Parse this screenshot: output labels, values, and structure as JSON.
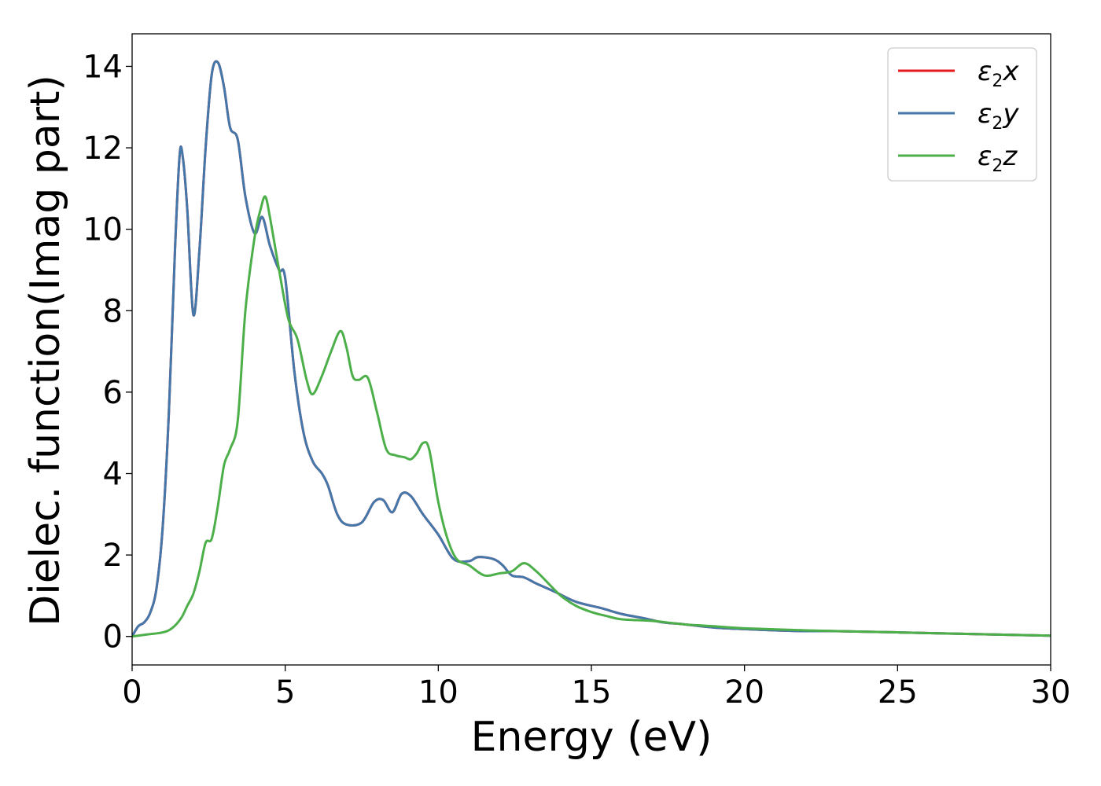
{
  "chart_data": {
    "type": "line",
    "xlabel": "Energy (eV)",
    "ylabel": "Dielec. function(Imag part)",
    "xlim": [
      0,
      30
    ],
    "ylim": [
      -0.7,
      14.8
    ],
    "xticks": [
      0,
      5,
      10,
      15,
      20,
      25,
      30
    ],
    "yticks": [
      0,
      2,
      4,
      6,
      8,
      10,
      12,
      14
    ],
    "grid": false,
    "legend_position": "top-right",
    "series": [
      {
        "name": "ε₂x",
        "legend": {
          "base": "ε",
          "sub": "2",
          "suffix": "x"
        },
        "color": "#e41a1c",
        "x": [
          0,
          0.2,
          0.4,
          0.6,
          0.8,
          1.0,
          1.2,
          1.4,
          1.55,
          1.65,
          1.8,
          2.0,
          2.2,
          2.4,
          2.6,
          2.8,
          3.0,
          3.2,
          3.45,
          3.7,
          4.0,
          4.25,
          4.5,
          4.8,
          5.0,
          5.3,
          5.6,
          5.9,
          6.2,
          6.4,
          6.7,
          7.0,
          7.5,
          7.9,
          8.2,
          8.5,
          8.8,
          9.1,
          9.5,
          10.0,
          10.5,
          11.0,
          11.3,
          11.8,
          12.1,
          12.4,
          12.8,
          13.2,
          13.8,
          14.5,
          15.3,
          16.0,
          16.7,
          17.3,
          18.0,
          19.0,
          20.0,
          21.0,
          22.0,
          23.0,
          25.0,
          28.0,
          30.0
        ],
        "values": [
          0.0,
          0.25,
          0.35,
          0.6,
          1.2,
          2.7,
          5.5,
          9.5,
          11.8,
          11.8,
          10.5,
          7.9,
          9.5,
          12.0,
          13.8,
          14.1,
          13.5,
          12.5,
          12.2,
          10.8,
          9.9,
          10.3,
          9.6,
          9.0,
          8.8,
          6.5,
          5.0,
          4.3,
          4.0,
          3.7,
          3.0,
          2.75,
          2.8,
          3.3,
          3.35,
          3.05,
          3.5,
          3.45,
          3.0,
          2.5,
          1.9,
          1.85,
          1.95,
          1.9,
          1.75,
          1.5,
          1.45,
          1.3,
          1.1,
          0.85,
          0.7,
          0.55,
          0.45,
          0.35,
          0.3,
          0.22,
          0.18,
          0.15,
          0.13,
          0.13,
          0.1,
          0.05,
          0.02
        ]
      },
      {
        "name": "ε₂y",
        "legend": {
          "base": "ε",
          "sub": "2",
          "suffix": "y"
        },
        "color": "#4477aa",
        "x": [
          0,
          0.2,
          0.4,
          0.6,
          0.8,
          1.0,
          1.2,
          1.4,
          1.55,
          1.65,
          1.8,
          2.0,
          2.2,
          2.4,
          2.6,
          2.8,
          3.0,
          3.2,
          3.45,
          3.7,
          4.0,
          4.25,
          4.5,
          4.8,
          5.0,
          5.3,
          5.6,
          5.9,
          6.2,
          6.4,
          6.7,
          7.0,
          7.5,
          7.9,
          8.2,
          8.5,
          8.8,
          9.1,
          9.5,
          10.0,
          10.5,
          11.0,
          11.3,
          11.8,
          12.1,
          12.4,
          12.8,
          13.2,
          13.8,
          14.5,
          15.3,
          16.0,
          16.7,
          17.3,
          18.0,
          19.0,
          20.0,
          21.0,
          22.0,
          23.0,
          25.0,
          28.0,
          30.0
        ],
        "values": [
          0.0,
          0.25,
          0.35,
          0.6,
          1.2,
          2.7,
          5.5,
          9.5,
          11.8,
          11.8,
          10.5,
          7.9,
          9.5,
          12.0,
          13.8,
          14.1,
          13.5,
          12.5,
          12.2,
          10.8,
          9.9,
          10.3,
          9.6,
          9.0,
          8.8,
          6.5,
          5.0,
          4.3,
          4.0,
          3.7,
          3.0,
          2.75,
          2.8,
          3.3,
          3.35,
          3.05,
          3.5,
          3.45,
          3.0,
          2.5,
          1.9,
          1.85,
          1.95,
          1.9,
          1.75,
          1.5,
          1.45,
          1.3,
          1.1,
          0.85,
          0.7,
          0.55,
          0.45,
          0.35,
          0.3,
          0.22,
          0.18,
          0.15,
          0.13,
          0.13,
          0.1,
          0.05,
          0.02
        ]
      },
      {
        "name": "ε₂z",
        "legend": {
          "base": "ε",
          "sub": "2",
          "suffix": "z"
        },
        "color": "#4daf4a",
        "x": [
          0,
          0.5,
          1.0,
          1.3,
          1.6,
          1.8,
          2.0,
          2.2,
          2.4,
          2.6,
          2.8,
          3.0,
          3.2,
          3.45,
          3.7,
          4.0,
          4.2,
          4.35,
          4.5,
          4.8,
          5.1,
          5.4,
          5.7,
          5.9,
          6.2,
          6.5,
          6.8,
          7.0,
          7.2,
          7.4,
          7.7,
          8.0,
          8.3,
          8.6,
          8.9,
          9.1,
          9.3,
          9.5,
          9.7,
          10.0,
          10.3,
          10.6,
          11.0,
          11.5,
          12.0,
          12.4,
          12.8,
          13.2,
          13.6,
          14.0,
          14.5,
          15.0,
          15.5,
          16.0,
          17.0,
          18.0,
          19.0,
          20.0,
          22.0,
          25.0,
          28.0,
          30.0
        ],
        "values": [
          0.0,
          0.05,
          0.1,
          0.2,
          0.45,
          0.75,
          1.05,
          1.6,
          2.3,
          2.4,
          3.2,
          4.2,
          4.6,
          5.3,
          8.0,
          9.8,
          10.5,
          10.8,
          10.3,
          9.0,
          7.8,
          7.3,
          6.3,
          5.95,
          6.4,
          7.0,
          7.5,
          7.1,
          6.4,
          6.3,
          6.35,
          5.5,
          4.6,
          4.45,
          4.4,
          4.35,
          4.5,
          4.75,
          4.6,
          3.3,
          2.4,
          1.9,
          1.75,
          1.5,
          1.55,
          1.6,
          1.8,
          1.6,
          1.3,
          1.0,
          0.75,
          0.6,
          0.5,
          0.42,
          0.38,
          0.3,
          0.25,
          0.2,
          0.15,
          0.1,
          0.05,
          0.02
        ]
      }
    ]
  }
}
